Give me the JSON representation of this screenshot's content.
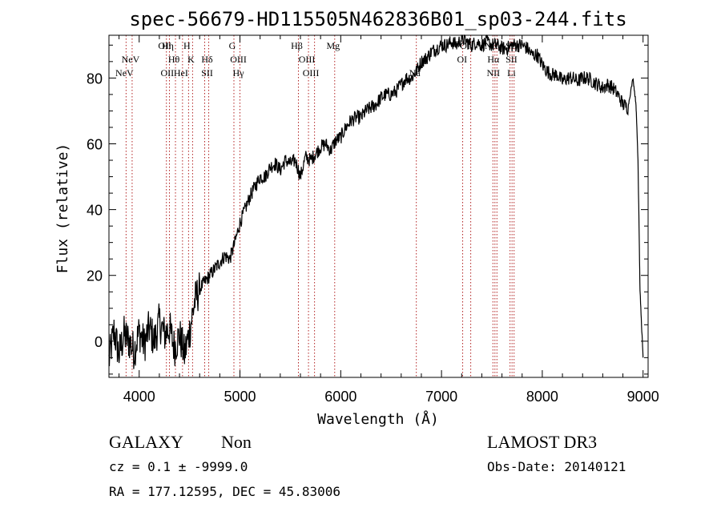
{
  "chart_data": {
    "type": "line",
    "title": "spec-56679-HD115505N462836B01_sp03-244.fits",
    "xlabel": "Wavelength (Å)",
    "ylabel": "Flux (relative)",
    "xlim": [
      3700,
      9050
    ],
    "ylim": [
      -11,
      93
    ],
    "xticks": [
      4000,
      5000,
      6000,
      7000,
      8000,
      9000
    ],
    "yticks": [
      0,
      20,
      40,
      60,
      80
    ],
    "grid": false,
    "series": [
      {
        "name": "",
        "color": "#000000",
        "x": [
          3700,
          3750,
          3800,
          3850,
          3900,
          3950,
          4000,
          4050,
          4100,
          4150,
          4200,
          4250,
          4300,
          4350,
          4400,
          4450,
          4500,
          4550,
          4600,
          4650,
          4700,
          4750,
          4800,
          4850,
          4900,
          4950,
          5000,
          5050,
          5100,
          5150,
          5200,
          5250,
          5300,
          5350,
          5400,
          5450,
          5500,
          5550,
          5600,
          5650,
          5700,
          5750,
          5800,
          5850,
          5900,
          5950,
          6000,
          6050,
          6100,
          6150,
          6200,
          6250,
          6300,
          6350,
          6400,
          6450,
          6500,
          6550,
          6600,
          6650,
          6700,
          6750,
          6800,
          6850,
          6900,
          6950,
          7000,
          7050,
          7100,
          7150,
          7200,
          7250,
          7300,
          7350,
          7400,
          7450,
          7500,
          7550,
          7600,
          7650,
          7700,
          7750,
          7800,
          7850,
          7900,
          7950,
          8000,
          8050,
          8100,
          8150,
          8200,
          8250,
          8300,
          8350,
          8400,
          8450,
          8500,
          8550,
          8600,
          8650,
          8700,
          8750,
          8800,
          8850,
          8900,
          8930,
          8950,
          8970,
          9000
        ],
        "y": [
          -6,
          3,
          -4,
          2,
          0,
          -3,
          3,
          -1,
          4,
          0,
          6,
          2,
          4,
          -2,
          2,
          -4,
          3,
          12,
          16,
          18,
          20,
          22,
          24,
          26,
          25,
          30,
          36,
          40,
          44,
          47,
          50,
          50,
          53,
          54,
          52,
          55,
          54,
          55,
          50,
          56,
          55,
          57,
          59,
          60,
          58,
          61,
          62,
          65,
          67,
          68,
          68,
          70,
          71,
          72,
          74,
          75,
          75,
          76,
          78,
          80,
          80,
          82,
          85,
          86,
          88,
          89,
          90,
          90,
          91,
          90,
          92,
          91,
          90,
          91,
          90,
          91,
          90,
          90,
          89,
          89,
          90,
          90,
          90,
          89,
          87,
          87,
          84,
          82,
          81,
          81,
          79,
          80,
          80,
          79,
          80,
          80,
          79,
          78,
          77,
          78,
          77,
          75,
          72,
          71,
          80,
          72,
          55,
          15,
          -5
        ]
      }
    ],
    "line_markers": [
      {
        "label": "NeV",
        "wavelength": 3870,
        "row": 2
      },
      {
        "label": "NeV",
        "wavelength": 3930,
        "row": 1
      },
      {
        "label": "OII",
        "wavelength": 4270,
        "row": 0
      },
      {
        "label": "Hη",
        "wavelength": 4300,
        "row": 0
      },
      {
        "label": "OII",
        "wavelength": 4295,
        "row": 2
      },
      {
        "label": "Hθ",
        "wavelength": 4360,
        "row": 1
      },
      {
        "label": "HeI",
        "wavelength": 4430,
        "row": 2
      },
      {
        "label": "H",
        "wavelength": 4490,
        "row": 0
      },
      {
        "label": "K",
        "wavelength": 4530,
        "row": 1
      },
      {
        "label": "Hδ",
        "wavelength": 4690,
        "row": 1
      },
      {
        "label": "SII",
        "wavelength": 4690,
        "row": 2
      },
      {
        "label": "G",
        "wavelength": 4940,
        "row": 0
      },
      {
        "label": "OIII",
        "wavelength": 5000,
        "row": 1
      },
      {
        "label": "Hγ",
        "wavelength": 5000,
        "row": 2
      },
      {
        "label": "Hβ",
        "wavelength": 5580,
        "row": 0
      },
      {
        "label": "OIII",
        "wavelength": 5680,
        "row": 1
      },
      {
        "label": "OIII",
        "wavelength": 5720,
        "row": 2
      },
      {
        "label": "Mg",
        "wavelength": 5940,
        "row": 0
      },
      {
        "label": "Na",
        "wavelength": 6750,
        "row": 2
      },
      {
        "label": "OI",
        "wavelength": 7250,
        "row": 0
      },
      {
        "label": "OI",
        "wavelength": 7220,
        "row": 1
      },
      {
        "label": "NII",
        "wavelength": 7510,
        "row": 0
      },
      {
        "label": "Hα",
        "wavelength": 7530,
        "row": 1
      },
      {
        "label": "NII",
        "wavelength": 7530,
        "row": 2
      },
      {
        "label": "SII",
        "wavelength": 7710,
        "row": 0
      },
      {
        "label": "SII",
        "wavelength": 7710,
        "row": 1
      },
      {
        "label": "Li",
        "wavelength": 7710,
        "row": 2
      }
    ],
    "dotted_lines": [
      3870,
      3930,
      4270,
      4300,
      4360,
      4430,
      4490,
      4530,
      4650,
      4690,
      4940,
      5000,
      5580,
      5680,
      5740,
      5940,
      6750,
      7210,
      7290,
      7510,
      7530,
      7550,
      7680,
      7700,
      7720
    ]
  },
  "footer": {
    "object_class": "GALAXY",
    "subclass": "Non",
    "survey": "LAMOST DR3",
    "cz_line": "cz = 0.1 ± -9999.0",
    "obs_date": "Obs-Date: 20140121",
    "radec": "RA = 177.12595, DEC =  45.83006"
  }
}
